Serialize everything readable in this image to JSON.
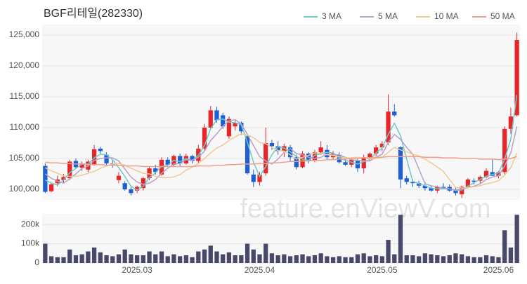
{
  "chart_data": {
    "type": "candlestick",
    "title": "BGF리테일(282330)",
    "watermark": "feature.enViewV.com",
    "legend": "top-right",
    "grid": true,
    "up_color": "#e8262a",
    "down_color": "#1f5fd6",
    "categories": [
      null,
      null,
      null,
      null,
      null,
      null,
      null,
      null,
      null,
      null,
      null,
      null,
      null,
      null,
      null,
      "2025.03",
      null,
      null,
      null,
      null,
      null,
      null,
      null,
      null,
      null,
      null,
      null,
      null,
      null,
      null,
      null,
      null,
      null,
      null,
      null,
      "2025.04",
      null,
      null,
      null,
      null,
      null,
      null,
      null,
      null,
      null,
      null,
      null,
      null,
      null,
      null,
      null,
      null,
      null,
      null,
      null,
      "2025.05",
      null,
      null,
      null,
      null,
      null,
      null,
      null,
      null,
      null,
      null,
      null,
      null,
      null,
      null,
      null,
      null,
      null,
      null,
      "2025.06",
      null,
      null,
      null
    ],
    "open": [
      103800,
      99700,
      101000,
      101500,
      101800,
      104600,
      103500,
      103200,
      104000,
      106600,
      105600,
      104200,
      101500,
      101000,
      100000,
      99800,
      100200,
      101800,
      103400,
      102400,
      104800,
      104000,
      105400,
      104200,
      105400,
      104600,
      106600,
      110000,
      112800,
      112000,
      108600,
      110200,
      110800,
      108600,
      102400,
      101200,
      102600,
      107500,
      107000,
      106200,
      106800,
      105200,
      103600,
      105800,
      104600,
      106000,
      106400,
      105200,
      105600,
      104400,
      104000,
      104600,
      103400,
      105200,
      105800,
      106800,
      107600,
      112600,
      106800,
      101800,
      101200,
      101000,
      100600,
      100200,
      99800,
      100400,
      100400,
      99800,
      99200,
      100400,
      101400,
      101400,
      102000,
      102800,
      102200,
      102800,
      109800,
      112000
    ],
    "high": [
      104200,
      101000,
      102200,
      102500,
      104800,
      105000,
      104500,
      104800,
      107200,
      106900,
      106000,
      104800,
      102800,
      101300,
      100400,
      100600,
      102000,
      103600,
      104000,
      105200,
      105200,
      105600,
      105800,
      105800,
      105600,
      107200,
      110600,
      113500,
      113400,
      112400,
      111800,
      111200,
      111000,
      108900,
      103200,
      102800,
      110000,
      108000,
      107800,
      107400,
      107200,
      105600,
      106200,
      106000,
      106400,
      107800,
      107200,
      106200,
      106000,
      105000,
      105200,
      105000,
      105600,
      106000,
      107200,
      107800,
      115400,
      113800,
      107000,
      102200,
      101600,
      101400,
      101200,
      100600,
      100600,
      101000,
      100800,
      100400,
      100600,
      101800,
      101800,
      102200,
      103400,
      104800,
      103000,
      110200,
      113200,
      125400
    ],
    "low": [
      99400,
      99500,
      100500,
      101000,
      101500,
      103500,
      103000,
      102800,
      103800,
      105800,
      103800,
      103500,
      101000,
      99800,
      99000,
      99400,
      99800,
      101500,
      102400,
      102200,
      103800,
      103600,
      103800,
      104000,
      104200,
      104200,
      106200,
      109800,
      110800,
      109800,
      108200,
      109500,
      108800,
      102400,
      100400,
      100600,
      102200,
      106400,
      105600,
      105200,
      104600,
      103200,
      103400,
      104200,
      104400,
      105600,
      104800,
      104800,
      104200,
      103800,
      103600,
      102800,
      102600,
      104600,
      105400,
      106200,
      107200,
      111800,
      100200,
      100800,
      100400,
      100200,
      99800,
      99600,
      99400,
      100000,
      99600,
      99000,
      98600,
      100200,
      100800,
      101000,
      101800,
      102200,
      101800,
      102400,
      109000,
      111800
    ],
    "close": [
      99600,
      100800,
      101600,
      102000,
      104500,
      103600,
      104200,
      104500,
      106500,
      106200,
      104200,
      104000,
      102200,
      100000,
      99400,
      100400,
      101800,
      103400,
      102800,
      104800,
      104000,
      105400,
      104200,
      105400,
      104600,
      106600,
      110000,
      112800,
      111200,
      110200,
      111400,
      110800,
      109400,
      102600,
      101200,
      102400,
      107500,
      107000,
      106200,
      107000,
      105200,
      103600,
      105800,
      104600,
      106000,
      106800,
      105200,
      105800,
      104400,
      104000,
      104800,
      103400,
      105200,
      105800,
      106800,
      107400,
      112600,
      112000,
      101600,
      101200,
      101000,
      100600,
      100200,
      99800,
      100400,
      100200,
      99800,
      99400,
      100400,
      101600,
      101200,
      102000,
      103000,
      102200,
      102800,
      109800,
      111800,
      124200
    ],
    "ylim": [
      98300,
      126700
    ],
    "yticks": [
      {
        "value": 100000,
        "label": "100,000"
      },
      {
        "value": 105000,
        "label": "105,000"
      },
      {
        "value": 110000,
        "label": "110,000"
      },
      {
        "value": 115000,
        "label": "115,000"
      },
      {
        "value": 120000,
        "label": "120,000"
      },
      {
        "value": 125000,
        "label": "125,000"
      }
    ],
    "series": [
      {
        "name": "3 MA",
        "color": "#6ccac8",
        "values": [
          101500,
          101000,
          100700,
          101500,
          102700,
          103400,
          104100,
          104100,
          105100,
          105700,
          105600,
          104800,
          103500,
          102100,
          100500,
          99900,
          100500,
          101900,
          102700,
          103700,
          103900,
          104700,
          104500,
          105000,
          104700,
          105500,
          107100,
          109800,
          111300,
          111400,
          110900,
          110800,
          110500,
          107600,
          104400,
          102100,
          103700,
          105600,
          106900,
          106700,
          106100,
          105300,
          104900,
          104700,
          105500,
          105800,
          106000,
          105900,
          105100,
          104700,
          104400,
          104100,
          104500,
          104800,
          105900,
          106700,
          108900,
          110700,
          108700,
          104900,
          101300,
          100900,
          100600,
          100200,
          100100,
          100100,
          100100,
          99800,
          99900,
          100500,
          101100,
          101600,
          102100,
          102400,
          102700,
          104900,
          108100,
          115300
        ]
      },
      {
        "name": "5 MA",
        "color": "#b5a2c9",
        "values": [
          102500,
          101800,
          101300,
          101000,
          101700,
          102500,
          103400,
          103800,
          104700,
          105000,
          105100,
          105100,
          104600,
          103300,
          102000,
          101200,
          100800,
          101000,
          101600,
          102600,
          103400,
          104100,
          104200,
          104800,
          104700,
          105200,
          106200,
          107900,
          109000,
          110200,
          111100,
          111300,
          110600,
          108900,
          107100,
          105300,
          104600,
          104100,
          104900,
          106000,
          106600,
          105800,
          105600,
          105200,
          105000,
          105200,
          105700,
          105600,
          105600,
          105200,
          104800,
          104700,
          104600,
          104600,
          105200,
          105700,
          107600,
          108900,
          108100,
          106800,
          105700,
          103300,
          100900,
          100600,
          100400,
          100200,
          100100,
          99900,
          100000,
          100300,
          100500,
          100900,
          101600,
          102000,
          102200,
          103800,
          105900,
          110200
        ]
      },
      {
        "name": "10 MA",
        "color": "#f2c894",
        "values": [
          103500,
          103000,
          102600,
          102200,
          102100,
          102100,
          102300,
          102600,
          102900,
          103400,
          103800,
          104100,
          104200,
          103900,
          103400,
          103000,
          102600,
          102500,
          102100,
          101900,
          101900,
          102000,
          102400,
          103100,
          103600,
          104200,
          105000,
          105900,
          106700,
          107200,
          107900,
          108500,
          109000,
          108800,
          108400,
          107600,
          107400,
          106800,
          106300,
          106200,
          105600,
          104900,
          105200,
          105500,
          105900,
          105800,
          105600,
          105500,
          105300,
          105100,
          105100,
          105200,
          105100,
          104900,
          105000,
          105200,
          106000,
          106800,
          106400,
          106100,
          105700,
          105400,
          104900,
          104300,
          103600,
          102900,
          101600,
          100300,
          100200,
          100300,
          100400,
          100600,
          100900,
          101100,
          101400,
          102300,
          103500,
          105900
        ]
      },
      {
        "name": "50 MA",
        "color": "#f0a08a",
        "values": [
          104400,
          104300,
          104300,
          104200,
          104200,
          104100,
          104100,
          104000,
          104000,
          104000,
          103900,
          103900,
          103900,
          103800,
          103800,
          103800,
          103700,
          103700,
          103700,
          103700,
          103700,
          103700,
          103700,
          103700,
          103700,
          103800,
          103800,
          103800,
          103900,
          103900,
          104000,
          104000,
          104100,
          104100,
          104100,
          104200,
          104200,
          104300,
          104300,
          104400,
          104500,
          104500,
          104600,
          104600,
          104700,
          104700,
          104800,
          104800,
          104900,
          104900,
          105000,
          105000,
          105100,
          105100,
          105200,
          105200,
          105300,
          105300,
          105300,
          105300,
          105300,
          105300,
          105200,
          105200,
          105200,
          105100,
          105100,
          105100,
          105000,
          105000,
          105000,
          104900,
          104900,
          104900,
          104800,
          104900,
          105000,
          105300
        ]
      }
    ],
    "volume": {
      "color": "#48486a",
      "values": [
        100000,
        35000,
        30000,
        30000,
        70000,
        40000,
        45000,
        60000,
        80000,
        55000,
        40000,
        35000,
        45000,
        70000,
        45000,
        40000,
        40000,
        60000,
        45000,
        60000,
        35000,
        45000,
        35000,
        40000,
        30000,
        60000,
        70000,
        90000,
        60000,
        45000,
        55000,
        40000,
        40000,
        100000,
        70000,
        45000,
        100000,
        50000,
        40000,
        45000,
        35000,
        40000,
        45000,
        35000,
        40000,
        50000,
        35000,
        30000,
        35000,
        30000,
        30000,
        45000,
        50000,
        35000,
        40000,
        35000,
        120000,
        45000,
        250000,
        40000,
        40000,
        35000,
        50000,
        45000,
        40000,
        35000,
        40000,
        50000,
        45000,
        35000,
        30000,
        30000,
        40000,
        35000,
        30000,
        170000,
        80000,
        250000
      ],
      "ylim": [
        0,
        255000
      ],
      "yticks": [
        0,
        {
          "value": 100000,
          "label": "100k"
        },
        {
          "value": 200000,
          "label": "200k"
        }
      ]
    }
  }
}
